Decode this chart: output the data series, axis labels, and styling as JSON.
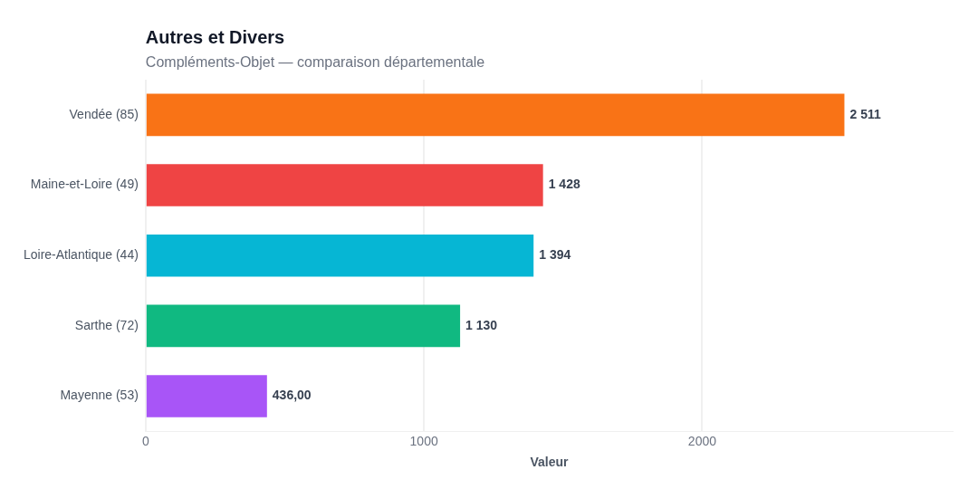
{
  "chart_data": {
    "type": "bar",
    "orientation": "horizontal",
    "title": "Autres et Divers",
    "subtitle": "Compléments-Objet — comparaison départementale",
    "xlabel": "Valeur",
    "categories": [
      "Vendée (85)",
      "Maine-et-Loire (49)",
      "Loire-Atlantique (44)",
      "Sarthe (72)",
      "Mayenne (53)"
    ],
    "values": [
      2511,
      1428,
      1394,
      1130,
      436
    ],
    "colors": [
      "#f97316",
      "#ef4444",
      "#06b6d4",
      "#10b981",
      "#a855f7"
    ],
    "value_labels": [
      "2 511",
      "1 428",
      "1 394",
      "1 130",
      "436,00"
    ],
    "xlim": [
      0,
      2900
    ],
    "xticks": [
      0,
      1000,
      2000
    ],
    "grid": "x",
    "legend": false
  }
}
